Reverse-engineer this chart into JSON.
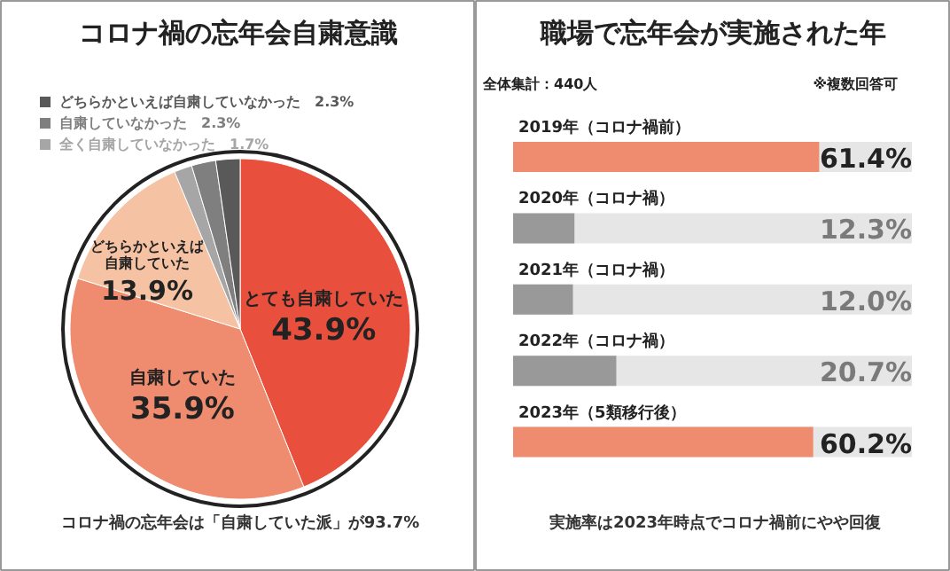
{
  "chart_data": [
    {
      "type": "pie",
      "title": "コロナ禍の忘年会自粛意識",
      "categories": [
        "とても自粛していた",
        "自粛していた",
        "どちらかといえば自粛していた",
        "全く自粛していなかった",
        "自粛していなかった",
        "どちらかといえば自粛していなかった"
      ],
      "values": [
        43.9,
        35.9,
        13.9,
        1.7,
        2.3,
        2.3
      ],
      "colors": [
        "#e84f3d",
        "#ef8b6e",
        "#f5c3a3",
        "#a6a6a6",
        "#7f7f7f",
        "#595959"
      ],
      "value_labels": [
        "43.9%",
        "35.9%",
        "13.9%",
        "1.7%",
        "2.3%",
        "2.3%"
      ],
      "legend": "top left",
      "annotations": [
        "コロナ禍の忘年会は「自粛していた派」が93.7%"
      ]
    },
    {
      "type": "bar",
      "orientation": "horizontal",
      "title": "職場で忘年会が実施された年",
      "categories": [
        "2019年（コロナ禍前）",
        "2020年（コロナ禍）",
        "2021年（コロナ禍）",
        "2022年（コロナ禍）",
        "2023年（5類移行後）"
      ],
      "values": [
        61.4,
        12.3,
        12.0,
        20.7,
        60.2
      ],
      "colors": [
        "#ef8b6e",
        "#999999",
        "#999999",
        "#999999",
        "#ef8b6e"
      ],
      "value_labels": [
        "61.4%",
        "12.3%",
        "12.0%",
        "20.7%",
        "60.2%"
      ],
      "xlim": [
        0,
        80
      ],
      "annotations": [
        "全体集計：440人",
        "※複数回答可",
        "実施率は2023年時点でコロナ禍前にやや回復"
      ]
    }
  ]
}
